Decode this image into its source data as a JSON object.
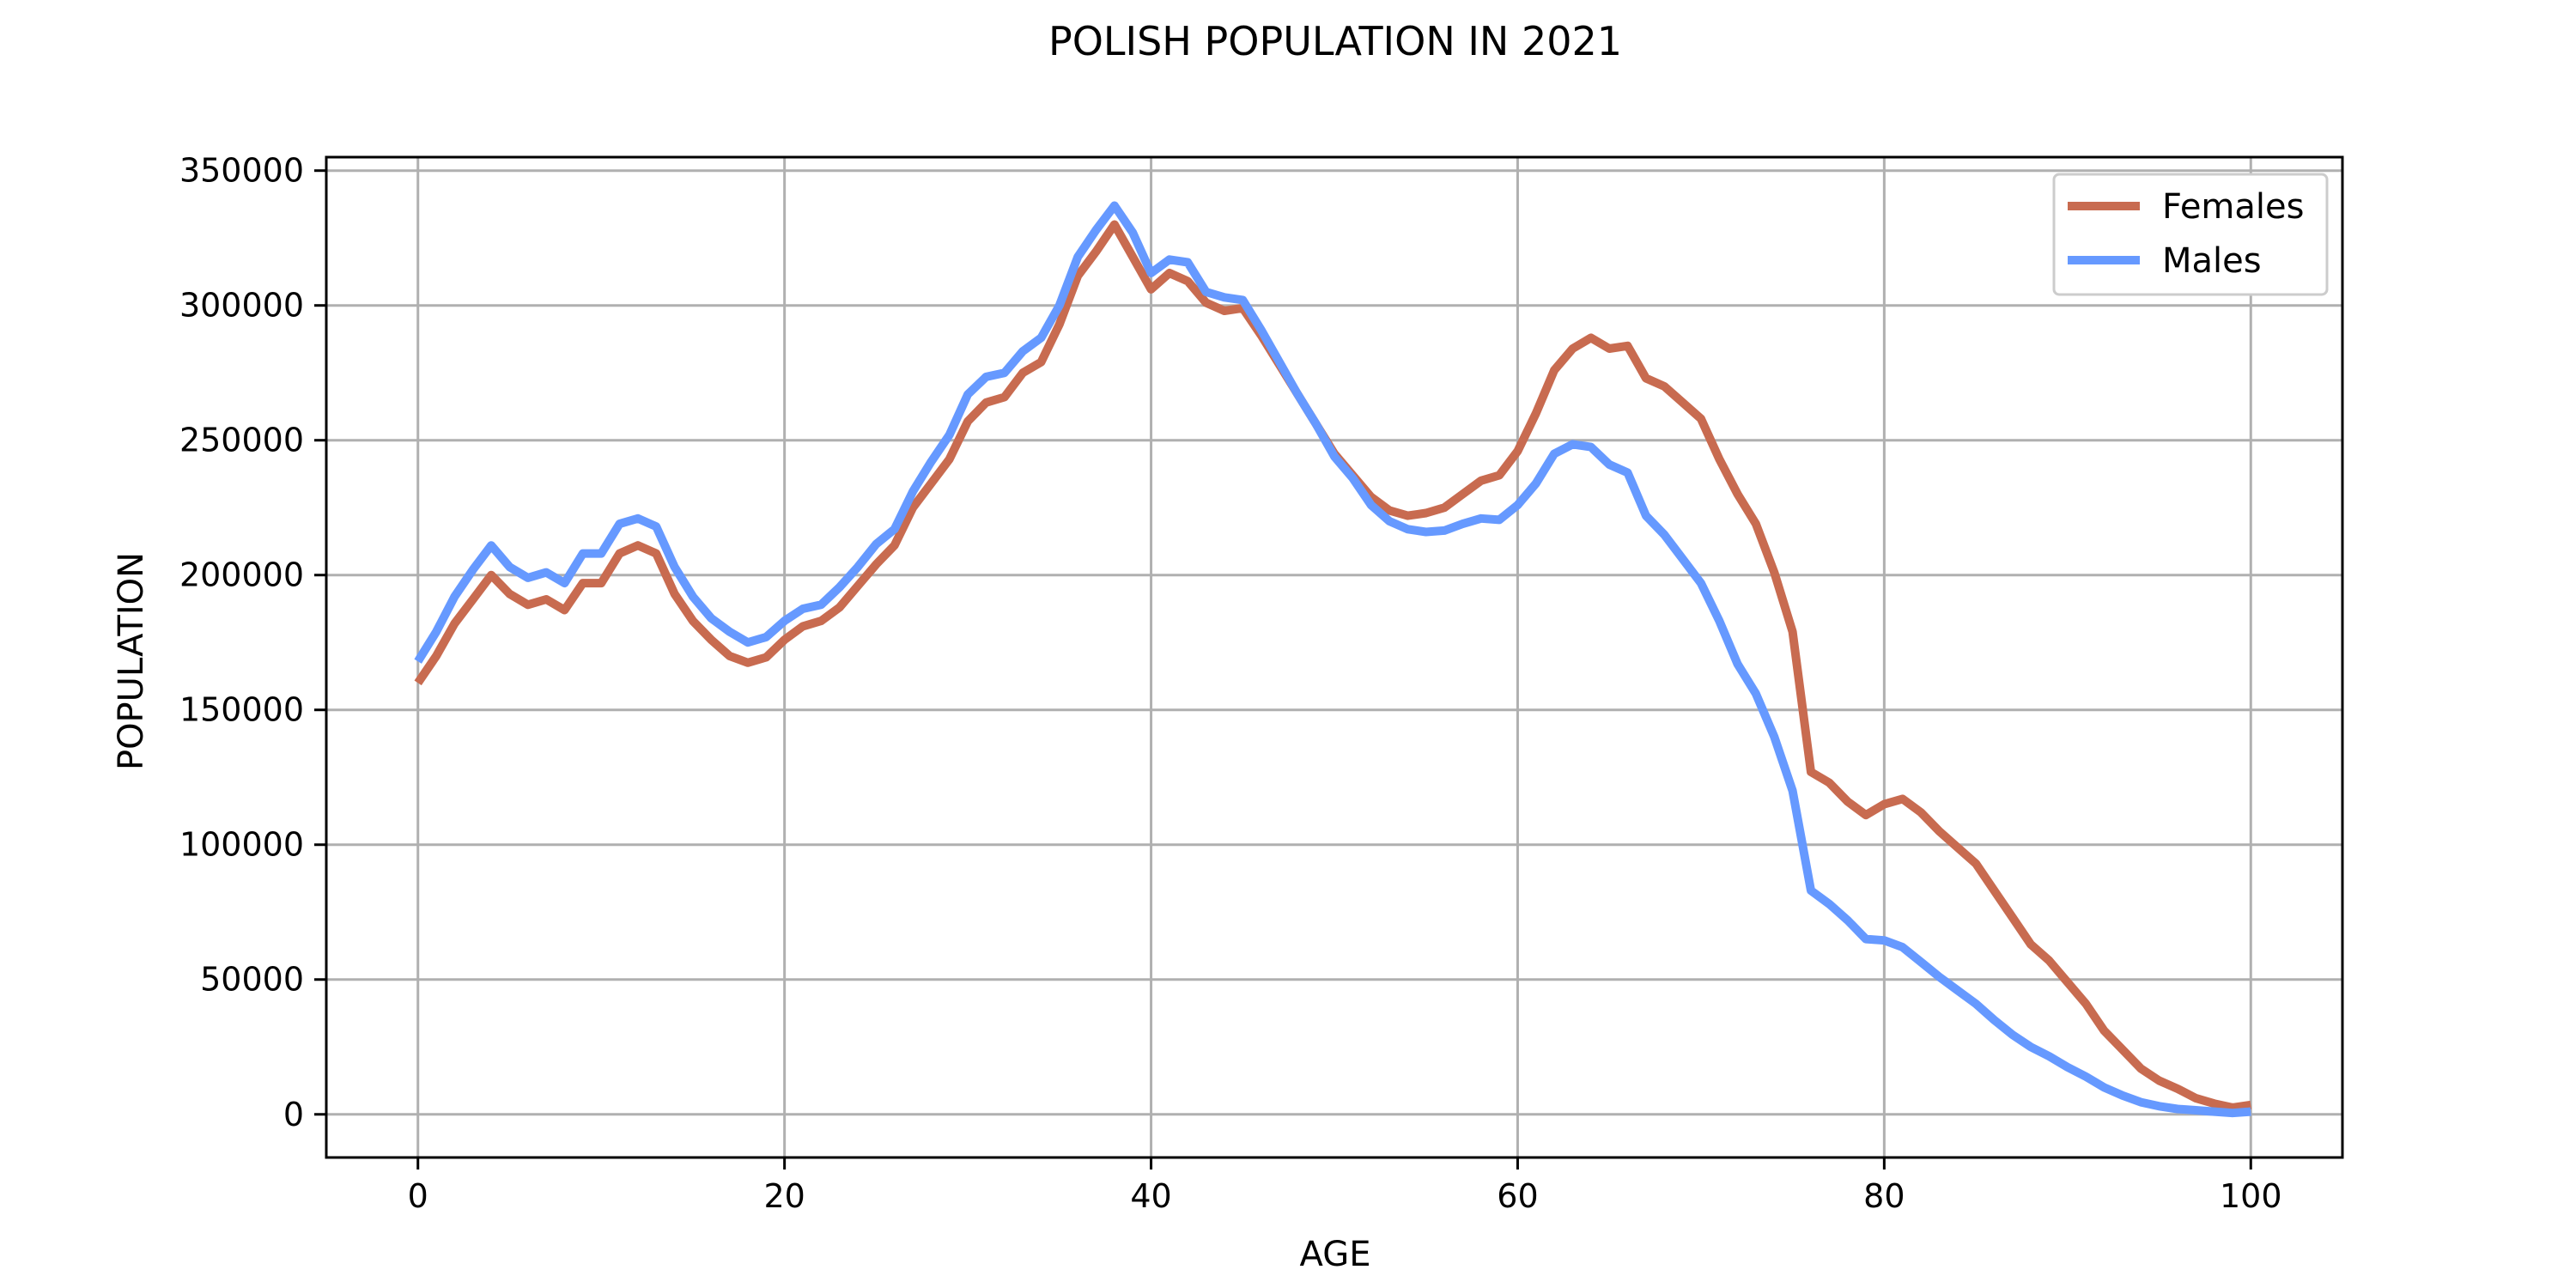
{
  "chart_data": {
    "type": "line",
    "title": "POLISH POPULATION IN 2021",
    "xlabel": "AGE",
    "ylabel": "POPULATION",
    "xlim": [
      -5,
      105
    ],
    "ylim": [
      -16000,
      355000
    ],
    "xticks": [
      0,
      20,
      40,
      60,
      80,
      100
    ],
    "yticks": [
      0,
      50000,
      100000,
      150000,
      200000,
      250000,
      300000,
      350000
    ],
    "grid": true,
    "legend_position": "top-right",
    "x": [
      0,
      1,
      2,
      3,
      4,
      5,
      6,
      7,
      8,
      9,
      10,
      11,
      12,
      13,
      14,
      15,
      16,
      17,
      18,
      19,
      20,
      21,
      22,
      23,
      24,
      25,
      26,
      27,
      28,
      29,
      30,
      31,
      32,
      33,
      34,
      35,
      36,
      37,
      38,
      39,
      40,
      41,
      42,
      43,
      44,
      45,
      46,
      47,
      48,
      49,
      50,
      51,
      52,
      53,
      54,
      55,
      56,
      57,
      58,
      59,
      60,
      61,
      62,
      63,
      64,
      65,
      66,
      67,
      68,
      69,
      70,
      71,
      72,
      73,
      74,
      75,
      76,
      77,
      78,
      79,
      80,
      81,
      82,
      83,
      84,
      85,
      86,
      87,
      88,
      89,
      90,
      91,
      92,
      93,
      94,
      95,
      96,
      97,
      98,
      99,
      100
    ],
    "series": [
      {
        "name": "Females",
        "color": "#c86b50",
        "values": [
          160000,
          170000,
          182000,
          191000,
          200000,
          193000,
          189000,
          191000,
          187000,
          197000,
          197000,
          208000,
          211000,
          208000,
          193000,
          183000,
          176000,
          170000,
          167500,
          169500,
          176000,
          181000,
          183000,
          188000,
          196000,
          204000,
          211000,
          225000,
          234000,
          243000,
          257000,
          264000,
          266000,
          275000,
          279000,
          293000,
          311000,
          320000,
          330000,
          318000,
          306000,
          312000,
          309000,
          301000,
          298000,
          299000,
          289000,
          278000,
          267000,
          256000,
          245000,
          237000,
          229000,
          224000,
          222000,
          223000,
          225000,
          230000,
          235000,
          237000,
          246000,
          260000,
          276000,
          284000,
          288000,
          284000,
          285000,
          273000,
          270000,
          264000,
          258000,
          243000,
          230000,
          219000,
          201000,
          179000,
          127000,
          123000,
          116000,
          111000,
          115000,
          117000,
          112000,
          105000,
          99000,
          93000,
          83000,
          73000,
          63000,
          57000,
          49000,
          41000,
          31000,
          24000,
          17000,
          12500,
          9500,
          6000,
          4000,
          2500,
          3500
        ]
      },
      {
        "name": "Males",
        "color": "#6699ff",
        "values": [
          168000,
          179000,
          192000,
          202000,
          211000,
          203000,
          199000,
          201000,
          197000,
          208000,
          208000,
          219000,
          221000,
          218000,
          203000,
          192000,
          184000,
          179000,
          175000,
          177000,
          183000,
          187500,
          189000,
          195500,
          203000,
          211500,
          217000,
          231000,
          242000,
          252000,
          267000,
          273500,
          275000,
          283000,
          288000,
          300000,
          318000,
          328000,
          337000,
          327000,
          312000,
          317000,
          316000,
          305000,
          303000,
          302000,
          291000,
          279000,
          267000,
          256000,
          244000,
          236000,
          226000,
          220000,
          217000,
          216000,
          216500,
          219000,
          221000,
          220500,
          226000,
          234000,
          245000,
          248500,
          247500,
          241000,
          238000,
          222000,
          215000,
          206000,
          197000,
          183000,
          167000,
          156000,
          140000,
          120000,
          83000,
          78000,
          72000,
          65000,
          64500,
          62000,
          56500,
          51000,
          46000,
          41000,
          35000,
          29500,
          25000,
          21500,
          17500,
          14000,
          10000,
          7000,
          4500,
          3000,
          2000,
          1500,
          1000,
          500,
          1000
        ]
      }
    ]
  }
}
